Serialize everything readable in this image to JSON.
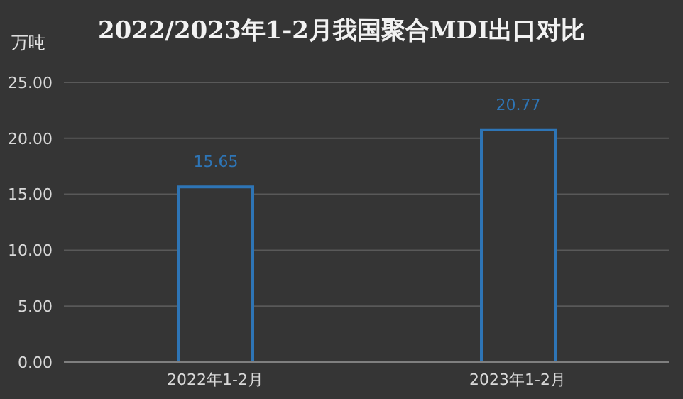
{
  "chart_data": {
    "type": "bar",
    "title": "2022/2023年1-2月我国聚合MDI出口对比",
    "ylabel": "万吨",
    "categories": [
      "2022年1-2月",
      "2023年1-2月"
    ],
    "values": [
      15.65,
      20.77
    ],
    "color": "#2e75b6",
    "ylim": [
      0,
      25
    ],
    "yticks": [
      {
        "value": 0,
        "label": "0.00"
      },
      {
        "value": 5,
        "label": "5.00"
      },
      {
        "value": 10,
        "label": "10.00"
      },
      {
        "value": 15,
        "label": "15.00"
      },
      {
        "value": 20,
        "label": "20.00"
      },
      {
        "value": 25,
        "label": "25.00"
      }
    ],
    "grid": "y",
    "data_labels": true
  }
}
